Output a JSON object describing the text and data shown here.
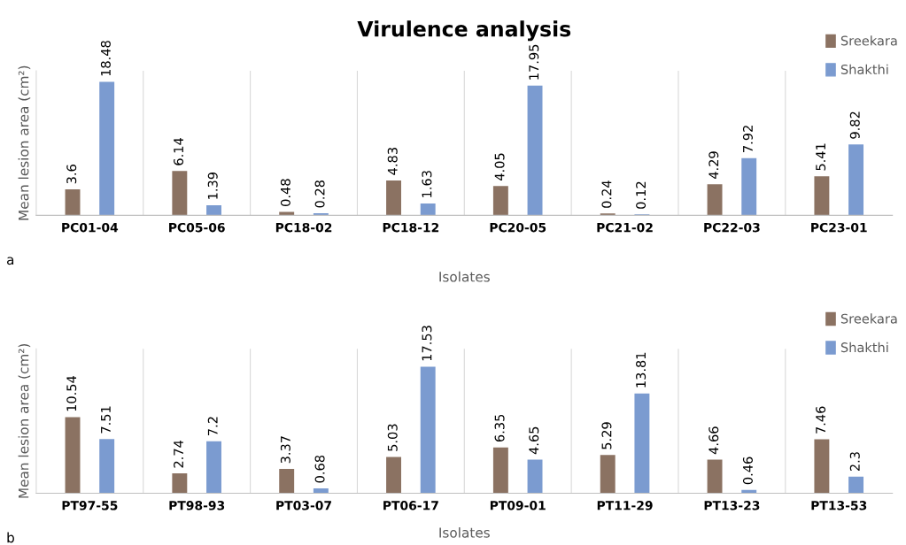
{
  "chart_data": [
    {
      "type": "bar",
      "title": "Virulence analysis",
      "xlabel": "Isolates",
      "ylabel": "Mean lesion area (cm²)",
      "categories": [
        "PC01-04",
        "PC05-06",
        "PC18-02",
        "PC18-12",
        "PC20-05",
        "PC21-02",
        "PC22-03",
        "PC23-01"
      ],
      "series": [
        {
          "name": "Sreekara",
          "color": "#8b7262",
          "values": [
            3.6,
            6.14,
            0.48,
            4.83,
            4.05,
            0.24,
            4.29,
            5.41
          ]
        },
        {
          "name": "Shakthi",
          "color": "#7b9bd0",
          "values": [
            18.48,
            1.39,
            0.28,
            1.63,
            17.95,
            0.12,
            7.92,
            9.82
          ]
        }
      ],
      "ylim": [
        0,
        20
      ],
      "tick_labels": "x",
      "data_labels": true,
      "grid": "x",
      "legend": "top right",
      "annotations": [
        "a"
      ]
    },
    {
      "type": "bar",
      "xlabel": "Isolates",
      "ylabel": "Mean lesion area (cm²)",
      "categories": [
        "PT97-55",
        "PT98-93",
        "PT03-07",
        "PT06-17",
        "PT09-01",
        "PT11-29",
        "PT13-23",
        "PT13-53"
      ],
      "series": [
        {
          "name": "Sreekara",
          "color": "#8b7262",
          "values": [
            10.54,
            2.74,
            3.37,
            5.03,
            6.35,
            5.29,
            4.66,
            7.46
          ]
        },
        {
          "name": "Shakthi",
          "color": "#7b9bd0",
          "values": [
            7.51,
            7.2,
            0.68,
            17.53,
            4.65,
            13.81,
            0.46,
            2.3
          ]
        }
      ],
      "ylim": [
        0,
        20
      ],
      "tick_labels": "x",
      "data_labels": true,
      "grid": "x",
      "legend": "top right",
      "annotations": [
        "b"
      ]
    }
  ]
}
